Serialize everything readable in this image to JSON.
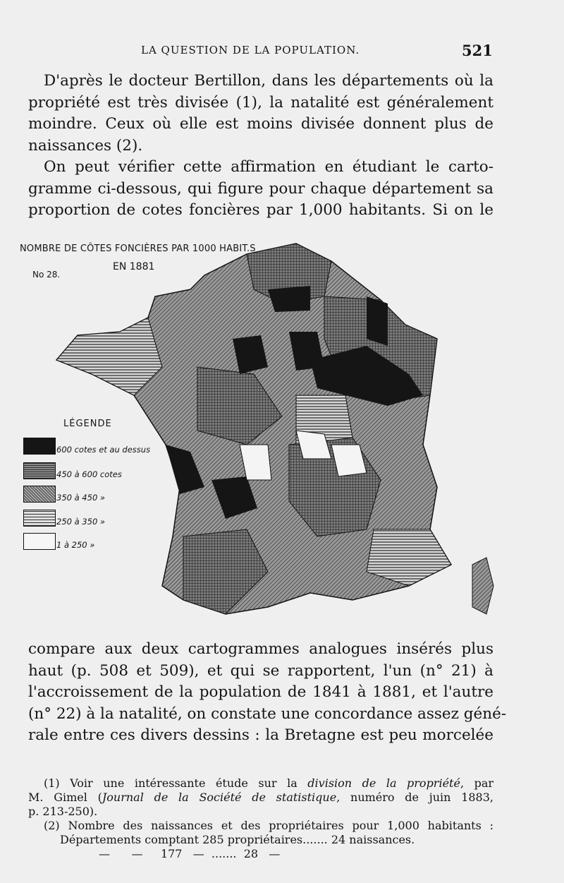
{
  "header": {
    "running_title": "LA QUESTION DE LA POPULATION.",
    "page_number": "521"
  },
  "para1": [
    "D'après le docteur Bertillon, dans les départements où la",
    "propriété est très divisée (1), la natalité est généralement",
    "moindre. Ceux où elle est moins divisée donnent plus de",
    "naissances (2)."
  ],
  "para2": [
    "On peut vérifier cette affirmation en étudiant le carto-",
    "gramme ci-dessous, qui figure pour chaque département sa",
    "proportion de cotes foncières par 1,000 habitants. Si on le"
  ],
  "map": {
    "title": "NOMBRE DE CÔTES FONCIÈRES PAR 1000 HABIT.S",
    "year": "EN 1881",
    "number": "No 28.",
    "legend_title": "LÉGENDE",
    "legend": [
      {
        "label": "600 cotes et au dessus",
        "pattern": "black"
      },
      {
        "label": "450 à 600 cotes",
        "pattern": "crosshatch"
      },
      {
        "label": "350 à 450 »",
        "pattern": "diagonal"
      },
      {
        "label": "250 à 350 »",
        "pattern": "horizontal"
      },
      {
        "label": "1 à 250 »",
        "pattern": "white"
      }
    ]
  },
  "para3": [
    "compare aux deux cartogrammes analogues insérés plus",
    "haut (p. 508 et 509), et qui se rapportent, l'un (n° 21) à",
    "l'accroissement de la population de 1841 à 1881, et l'autre",
    "(n° 22) à la natalité, on constate une concordance assez géné-",
    "rale entre ces divers dessins : la Bretagne est peu morcelée"
  ],
  "footnotes": {
    "fn1_a": "(1) Voir une intéressante étude sur la ",
    "fn1_italic": "division de la propriété",
    "fn1_b": ", par",
    "fn1_c": "M. Gimel (",
    "fn1_italic2": "Journal de la Société de statistique",
    "fn1_d": ", numéro de juin 1883,",
    "fn1_e": "p. 213-250).",
    "fn2_a": "(2) Nombre des naissances et des propriétaires pour 1,000 habitants :",
    "fn2_b": "Départements comptant 285 propriétaires....... 24 naissances.",
    "fn2_c": "—      —     177   —  .......  28   —"
  }
}
